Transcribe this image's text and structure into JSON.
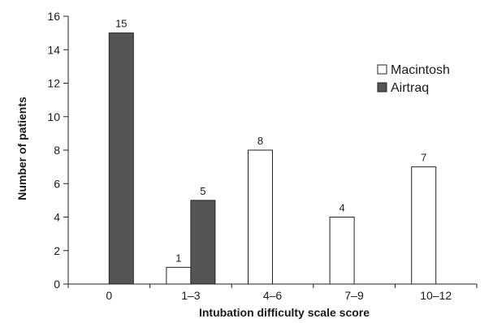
{
  "chart_data": {
    "type": "bar",
    "xlabel": "Intubation difficulty scale score",
    "ylabel": "Number of patients",
    "categories": [
      "0",
      "1–3",
      "4–6",
      "7–9",
      "10–12"
    ],
    "series": [
      {
        "name": "Macintosh",
        "color": "#ffffff",
        "values": [
          0,
          1,
          8,
          4,
          7
        ]
      },
      {
        "name": "Airtraq",
        "color": "#555555",
        "values": [
          15,
          5,
          0,
          0,
          0
        ]
      }
    ],
    "data_labels": [
      {
        "series": "Airtraq",
        "category": "0",
        "value": 15,
        "text": "15"
      },
      {
        "series": "Macintosh",
        "category": "1–3",
        "value": 1,
        "text": "1"
      },
      {
        "series": "Airtraq",
        "category": "1–3",
        "value": 5,
        "text": "5"
      },
      {
        "series": "Macintosh",
        "category": "4–6",
        "value": 8,
        "text": "8"
      },
      {
        "series": "Macintosh",
        "category": "7–9",
        "value": 4,
        "text": "4"
      },
      {
        "series": "Macintosh",
        "category": "10–12",
        "value": 7,
        "text": "7"
      }
    ],
    "ylim": [
      0,
      16
    ],
    "yticks": [
      0,
      2,
      4,
      6,
      8,
      10,
      12,
      14,
      16
    ],
    "grid": false,
    "legend": {
      "position": "top-right",
      "entries": [
        "Macintosh",
        "Airtraq"
      ]
    }
  }
}
